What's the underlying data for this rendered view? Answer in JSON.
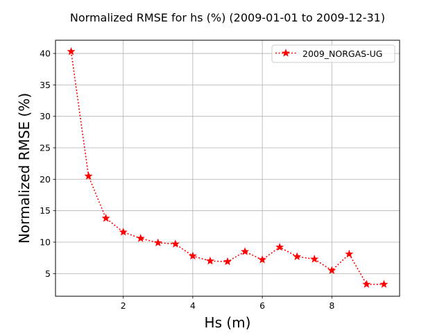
{
  "chart_data": {
    "type": "line",
    "title": "Normalized RMSE for hs (%) (2009-01-01 to 2009-12-31)",
    "xlabel": "Hs (m)",
    "ylabel": "Normalized RMSE (%)",
    "xlim": [
      0.05,
      9.95
    ],
    "ylim": [
      1.4,
      42.1
    ],
    "xticks": [
      2,
      4,
      6,
      8
    ],
    "yticks": [
      5,
      10,
      15,
      20,
      25,
      30,
      35,
      40
    ],
    "grid": true,
    "legend_position": "top-right",
    "series": [
      {
        "name": "2009_NORGAS-UG",
        "color": "#ff0000",
        "line_style": "dotted",
        "marker": "star",
        "x": [
          0.5,
          1.0,
          1.5,
          2.0,
          2.5,
          3.0,
          3.5,
          4.0,
          4.5,
          5.0,
          5.5,
          6.0,
          6.5,
          7.0,
          7.5,
          8.0,
          8.5,
          9.0,
          9.5
        ],
        "y": [
          40.3,
          20.5,
          13.8,
          11.6,
          10.6,
          9.9,
          9.7,
          7.8,
          7.0,
          6.9,
          8.5,
          7.2,
          9.2,
          7.7,
          7.3,
          5.5,
          8.1,
          3.3,
          3.3
        ]
      }
    ]
  }
}
